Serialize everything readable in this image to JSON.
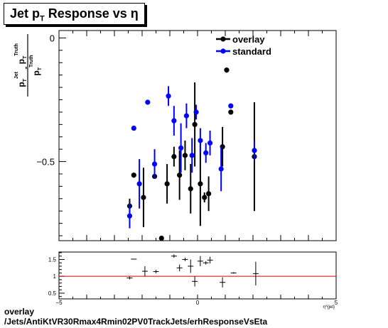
{
  "chart_data": [
    {
      "type": "scatter",
      "title_main": "Jet p",
      "title_sub": "T",
      "title_rest": " Response vs  η",
      "ylabel": "p_T^Jet - p_T^Truth / p_T^Truth",
      "ylabel_parts": {
        "p": "p",
        "T": "T",
        "jet": "Jet",
        "minus": " - ",
        "truth": "Truth"
      },
      "xlim": [
        -5,
        5
      ],
      "ylim": [
        -0.82,
        0.03
      ],
      "y_ticks": [
        {
          "value": 0,
          "label": "0"
        },
        {
          "value": -0.5,
          "label": "−0.5"
        }
      ],
      "legend_position": "top-right",
      "series": [
        {
          "name": "overlay",
          "color": "#000000",
          "points": [
            {
              "x": -2.45,
              "y": -0.68,
              "err": 0.03
            },
            {
              "x": -2.3,
              "y": -0.555,
              "err": 0.01
            },
            {
              "x": -1.95,
              "y": -0.645,
              "err": 0.12
            },
            {
              "x": -1.55,
              "y": -0.56,
              "err": 0.01
            },
            {
              "x": -1.3,
              "y": -0.81,
              "err": 0.01
            },
            {
              "x": -1.1,
              "y": -0.59,
              "err": 0.08
            },
            {
              "x": -0.85,
              "y": -0.48,
              "err": 0.04
            },
            {
              "x": -0.65,
              "y": -0.555,
              "err": 0.1
            },
            {
              "x": -0.45,
              "y": -0.475,
              "err": 0.06
            },
            {
              "x": -0.25,
              "y": -0.61,
              "err": 0.1
            },
            {
              "x": -0.1,
              "y": -0.35,
              "err": 0.17
            },
            {
              "x": 0.1,
              "y": -0.59,
              "err": 0.17
            },
            {
              "x": 0.25,
              "y": -0.645,
              "err": 0.02
            },
            {
              "x": 0.4,
              "y": -0.63,
              "err": 0.07
            },
            {
              "x": 0.9,
              "y": -0.44,
              "err": 0.08
            },
            {
              "x": 1.05,
              "y": -0.13,
              "err": 0.01
            },
            {
              "x": 1.2,
              "y": -0.3,
              "err": 0.01
            },
            {
              "x": 2.05,
              "y": -0.48,
              "err": 0.22
            }
          ]
        },
        {
          "name": "standard",
          "color": "#0000ff",
          "points": [
            {
              "x": -2.45,
              "y": -0.72,
              "err": 0.05
            },
            {
              "x": -2.3,
              "y": -0.365,
              "err": 0.01
            },
            {
              "x": -2.1,
              "y": -0.59,
              "err": 0.1
            },
            {
              "x": -1.8,
              "y": -0.26,
              "err": 0.01
            },
            {
              "x": -1.55,
              "y": -0.51,
              "err": 0.06
            },
            {
              "x": -1.05,
              "y": -0.235,
              "err": 0.04
            },
            {
              "x": -0.85,
              "y": -0.335,
              "err": 0.06
            },
            {
              "x": -0.6,
              "y": -0.445,
              "err": 0.1
            },
            {
              "x": -0.4,
              "y": -0.315,
              "err": 0.05
            },
            {
              "x": -0.2,
              "y": -0.475,
              "err": 0.07
            },
            {
              "x": -0.05,
              "y": -0.3,
              "err": 0.03
            },
            {
              "x": 0.1,
              "y": -0.415,
              "err": 0.05
            },
            {
              "x": 0.3,
              "y": -0.465,
              "err": 0.04
            },
            {
              "x": 0.45,
              "y": -0.425,
              "err": 0.05
            },
            {
              "x": 0.85,
              "y": -0.53,
              "err": 0.09
            },
            {
              "x": 1.2,
              "y": -0.275,
              "err": 0.01
            },
            {
              "x": 2.05,
              "y": -0.455,
              "err": 0.04
            }
          ]
        }
      ]
    },
    {
      "type": "scatter",
      "xlim": [
        -5,
        5
      ],
      "ylim": [
        0.33,
        1.72
      ],
      "reference_line": {
        "y": 1,
        "color": "#cc0000"
      },
      "x_ticks": [
        {
          "value": -5,
          "label": "−5"
        },
        {
          "value": 0,
          "label": "0"
        },
        {
          "value": 5,
          "label": "5"
        }
      ],
      "y_ticks": [
        {
          "value": 1.5,
          "label": "1.5"
        },
        {
          "value": 1,
          "label": "1"
        },
        {
          "value": 0.5,
          "label": "0.5"
        }
      ],
      "xlabel_fragment": "η^{jet}",
      "series": [
        {
          "name": "",
          "color": "#000000",
          "points": [
            {
              "x": -2.45,
              "y": 0.95,
              "err": 0.04
            },
            {
              "x": -2.3,
              "y": 1.51,
              "err": 0.01
            },
            {
              "x": -1.9,
              "y": 1.15,
              "err": 0.15
            },
            {
              "x": -1.5,
              "y": 1.14,
              "err": 0.05
            },
            {
              "x": -0.85,
              "y": 1.6,
              "err": 0.05
            },
            {
              "x": -0.65,
              "y": 1.25,
              "err": 0.1
            },
            {
              "x": -0.45,
              "y": 1.5,
              "err": 0.05
            },
            {
              "x": -0.25,
              "y": 1.3,
              "err": 0.2
            },
            {
              "x": -0.1,
              "y": 0.85,
              "err": 0.15
            },
            {
              "x": 0.1,
              "y": 1.45,
              "err": 0.15
            },
            {
              "x": 0.3,
              "y": 1.4,
              "err": 0.05
            },
            {
              "x": 0.45,
              "y": 1.48,
              "err": 0.1
            },
            {
              "x": 0.9,
              "y": 0.82,
              "err": 0.15
            },
            {
              "x": 1.3,
              "y": 1.1,
              "err": 0.02
            },
            {
              "x": 2.1,
              "y": 1.08,
              "err": 0.35
            }
          ]
        }
      ]
    }
  ],
  "footer": {
    "line1": "overlay",
    "line2": "/Jets/AntiKtVR30Rmax4Rmin02PV0TrackJets/erhResponseVsEta"
  }
}
